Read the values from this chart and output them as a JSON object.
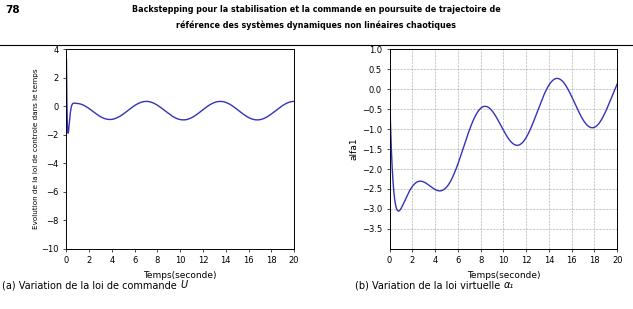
{
  "line_color": "#3333bb",
  "line_width": 1.0,
  "xlabel": "Temps(seconde)",
  "ylabel_left": "Evolution de la loi de controle dans le temps",
  "ylabel_right": "alfa1",
  "caption_left": "(a) Variation de la loi de commande ",
  "caption_left_italic": "U",
  "caption_right": "(b) Variation de la loi virtuelle ",
  "caption_right_sub": "α",
  "caption_right_sub2": "1",
  "left_ylim": [
    -10,
    4
  ],
  "left_yticks": [
    -10,
    -8,
    -6,
    -4,
    -2,
    0,
    2,
    4
  ],
  "right_ylim": [
    -4,
    1
  ],
  "right_yticks": [
    -3.5,
    -3.0,
    -2.5,
    -2.0,
    -1.5,
    -1.0,
    -0.5,
    0.0,
    0.5,
    1.0
  ],
  "xlim": [
    0,
    20
  ],
  "xticks": [
    0,
    2,
    4,
    6,
    8,
    10,
    12,
    14,
    16,
    18,
    20
  ],
  "header_line1": "Backstepping pour la stabilisation et la commande en poursuite de trajectoire de",
  "header_line2": "référence des systèmes dynamiques non linéaires chaotiques",
  "page_number": "78",
  "background_color": "#ffffff",
  "grid_color": "#999999"
}
